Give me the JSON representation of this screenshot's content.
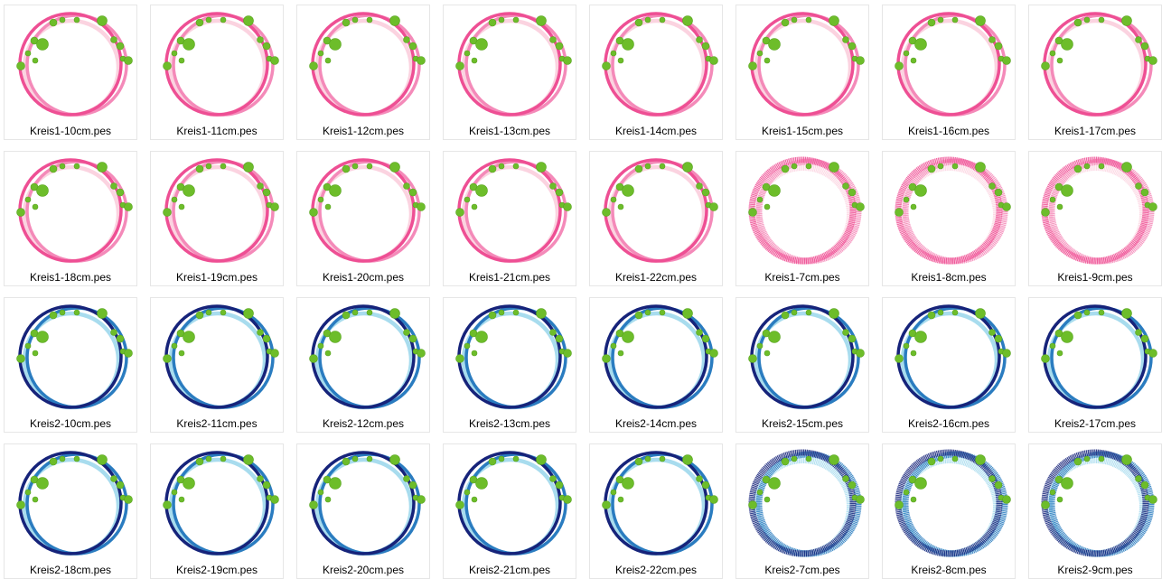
{
  "window": {
    "view": "large-icons"
  },
  "colors": {
    "kreis1": {
      "outer": "#ee4f94",
      "mid": "#f48ab9",
      "inner": "#fbd3e0"
    },
    "kreis2": {
      "outer": "#16237a",
      "mid": "#2a7cc0",
      "inner": "#a8dcee"
    },
    "dots": "#6dbd2a",
    "dotsDark": "#58a31f"
  },
  "files": [
    {
      "name": "Kreis1-10cm.pes",
      "set": "kreis1",
      "fuzzy": false
    },
    {
      "name": "Kreis1-11cm.pes",
      "set": "kreis1",
      "fuzzy": false
    },
    {
      "name": "Kreis1-12cm.pes",
      "set": "kreis1",
      "fuzzy": false
    },
    {
      "name": "Kreis1-13cm.pes",
      "set": "kreis1",
      "fuzzy": false
    },
    {
      "name": "Kreis1-14cm.pes",
      "set": "kreis1",
      "fuzzy": false
    },
    {
      "name": "Kreis1-15cm.pes",
      "set": "kreis1",
      "fuzzy": false
    },
    {
      "name": "Kreis1-16cm.pes",
      "set": "kreis1",
      "fuzzy": false
    },
    {
      "name": "Kreis1-17cm.pes",
      "set": "kreis1",
      "fuzzy": false
    },
    {
      "name": "Kreis1-18cm.pes",
      "set": "kreis1",
      "fuzzy": false
    },
    {
      "name": "Kreis1-19cm.pes",
      "set": "kreis1",
      "fuzzy": false
    },
    {
      "name": "Kreis1-20cm.pes",
      "set": "kreis1",
      "fuzzy": false
    },
    {
      "name": "Kreis1-21cm.pes",
      "set": "kreis1",
      "fuzzy": false
    },
    {
      "name": "Kreis1-22cm.pes",
      "set": "kreis1",
      "fuzzy": false
    },
    {
      "name": "Kreis1-7cm.pes",
      "set": "kreis1",
      "fuzzy": true
    },
    {
      "name": "Kreis1-8cm.pes",
      "set": "kreis1",
      "fuzzy": true
    },
    {
      "name": "Kreis1-9cm.pes",
      "set": "kreis1",
      "fuzzy": true
    },
    {
      "name": "Kreis2-10cm.pes",
      "set": "kreis2",
      "fuzzy": false
    },
    {
      "name": "Kreis2-11cm.pes",
      "set": "kreis2",
      "fuzzy": false
    },
    {
      "name": "Kreis2-12cm.pes",
      "set": "kreis2",
      "fuzzy": false
    },
    {
      "name": "Kreis2-13cm.pes",
      "set": "kreis2",
      "fuzzy": false
    },
    {
      "name": "Kreis2-14cm.pes",
      "set": "kreis2",
      "fuzzy": false
    },
    {
      "name": "Kreis2-15cm.pes",
      "set": "kreis2",
      "fuzzy": false
    },
    {
      "name": "Kreis2-16cm.pes",
      "set": "kreis2",
      "fuzzy": false
    },
    {
      "name": "Kreis2-17cm.pes",
      "set": "kreis2",
      "fuzzy": false
    },
    {
      "name": "Kreis2-18cm.pes",
      "set": "kreis2",
      "fuzzy": false
    },
    {
      "name": "Kreis2-19cm.pes",
      "set": "kreis2",
      "fuzzy": false
    },
    {
      "name": "Kreis2-20cm.pes",
      "set": "kreis2",
      "fuzzy": false
    },
    {
      "name": "Kreis2-21cm.pes",
      "set": "kreis2",
      "fuzzy": false
    },
    {
      "name": "Kreis2-22cm.pes",
      "set": "kreis2",
      "fuzzy": false
    },
    {
      "name": "Kreis2-7cm.pes",
      "set": "kreis2",
      "fuzzy": true
    },
    {
      "name": "Kreis2-8cm.pes",
      "set": "kreis2",
      "fuzzy": true
    },
    {
      "name": "Kreis2-9cm.pes",
      "set": "kreis2",
      "fuzzy": true
    }
  ]
}
